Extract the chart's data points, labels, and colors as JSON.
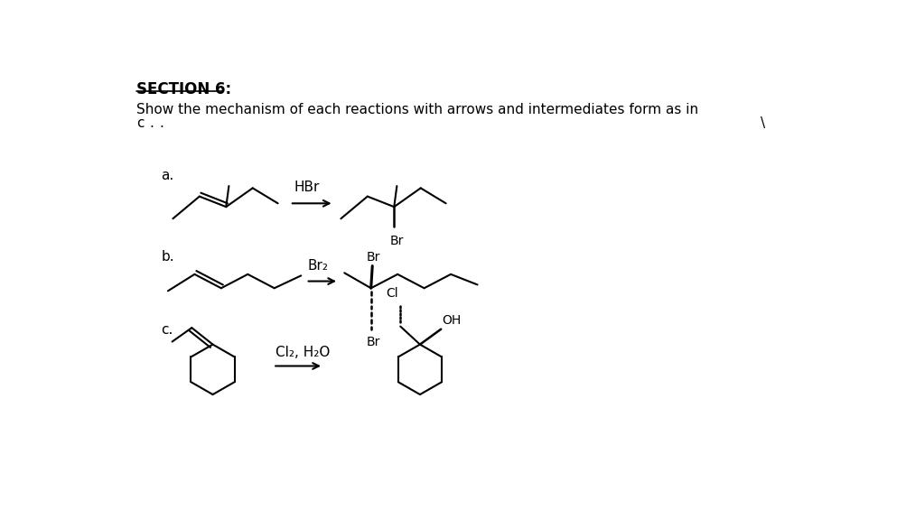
{
  "bg_color": "#ffffff",
  "title": "SECTION 6:",
  "subtitle": "Show the mechanism of each reactions with arrows and intermediates form as in",
  "label_a": "a.",
  "label_b": "b.",
  "label_c": "c.",
  "reagent_a": "HBr",
  "reagent_b": "Br₂",
  "reagent_c": "Cl₂, H₂O",
  "prod_a_br": "Br",
  "prod_b_br_top": "Br",
  "prod_b_br_bot": "Br",
  "prod_c_cl": "Cl",
  "prod_c_oh": "OH"
}
